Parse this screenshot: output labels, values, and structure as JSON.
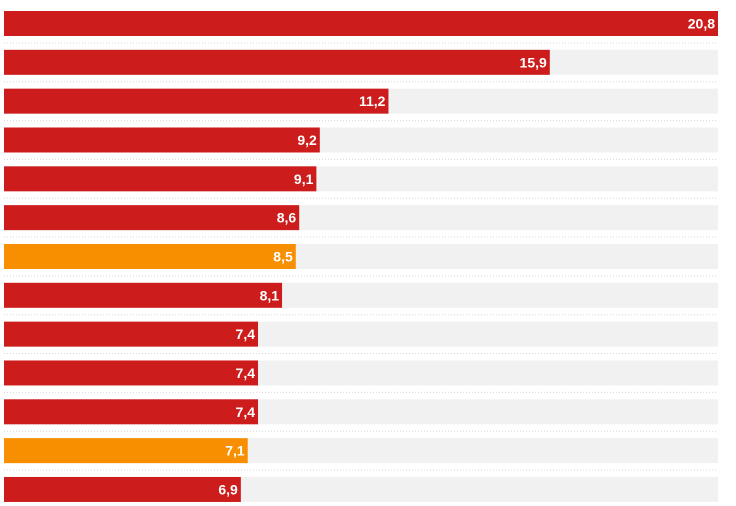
{
  "chart_data": {
    "type": "bar",
    "orientation": "horizontal",
    "title": "",
    "xlabel": "",
    "ylabel": "",
    "xlim": [
      0,
      20.8
    ],
    "grid": false,
    "legend": "none",
    "colors": {
      "default": "#cc1c1c",
      "highlight": "#f78f00",
      "track": "#f1f1f1",
      "label": "#ffffff",
      "separator": "#d8d8d8"
    },
    "bars": [
      {
        "value": 20.8,
        "label": "20,8",
        "highlight": false
      },
      {
        "value": 15.9,
        "label": "15,9",
        "highlight": false
      },
      {
        "value": 11.2,
        "label": "11,2",
        "highlight": false
      },
      {
        "value": 9.2,
        "label": "9,2",
        "highlight": false
      },
      {
        "value": 9.1,
        "label": "9,1",
        "highlight": false
      },
      {
        "value": 8.6,
        "label": "8,6",
        "highlight": false
      },
      {
        "value": 8.5,
        "label": "8,5",
        "highlight": true
      },
      {
        "value": 8.1,
        "label": "8,1",
        "highlight": false
      },
      {
        "value": 7.4,
        "label": "7,4",
        "highlight": false
      },
      {
        "value": 7.4,
        "label": "7,4",
        "highlight": false
      },
      {
        "value": 7.4,
        "label": "7,4",
        "highlight": false
      },
      {
        "value": 7.1,
        "label": "7,1",
        "highlight": true
      },
      {
        "value": 6.9,
        "label": "6,9",
        "highlight": false
      }
    ]
  }
}
